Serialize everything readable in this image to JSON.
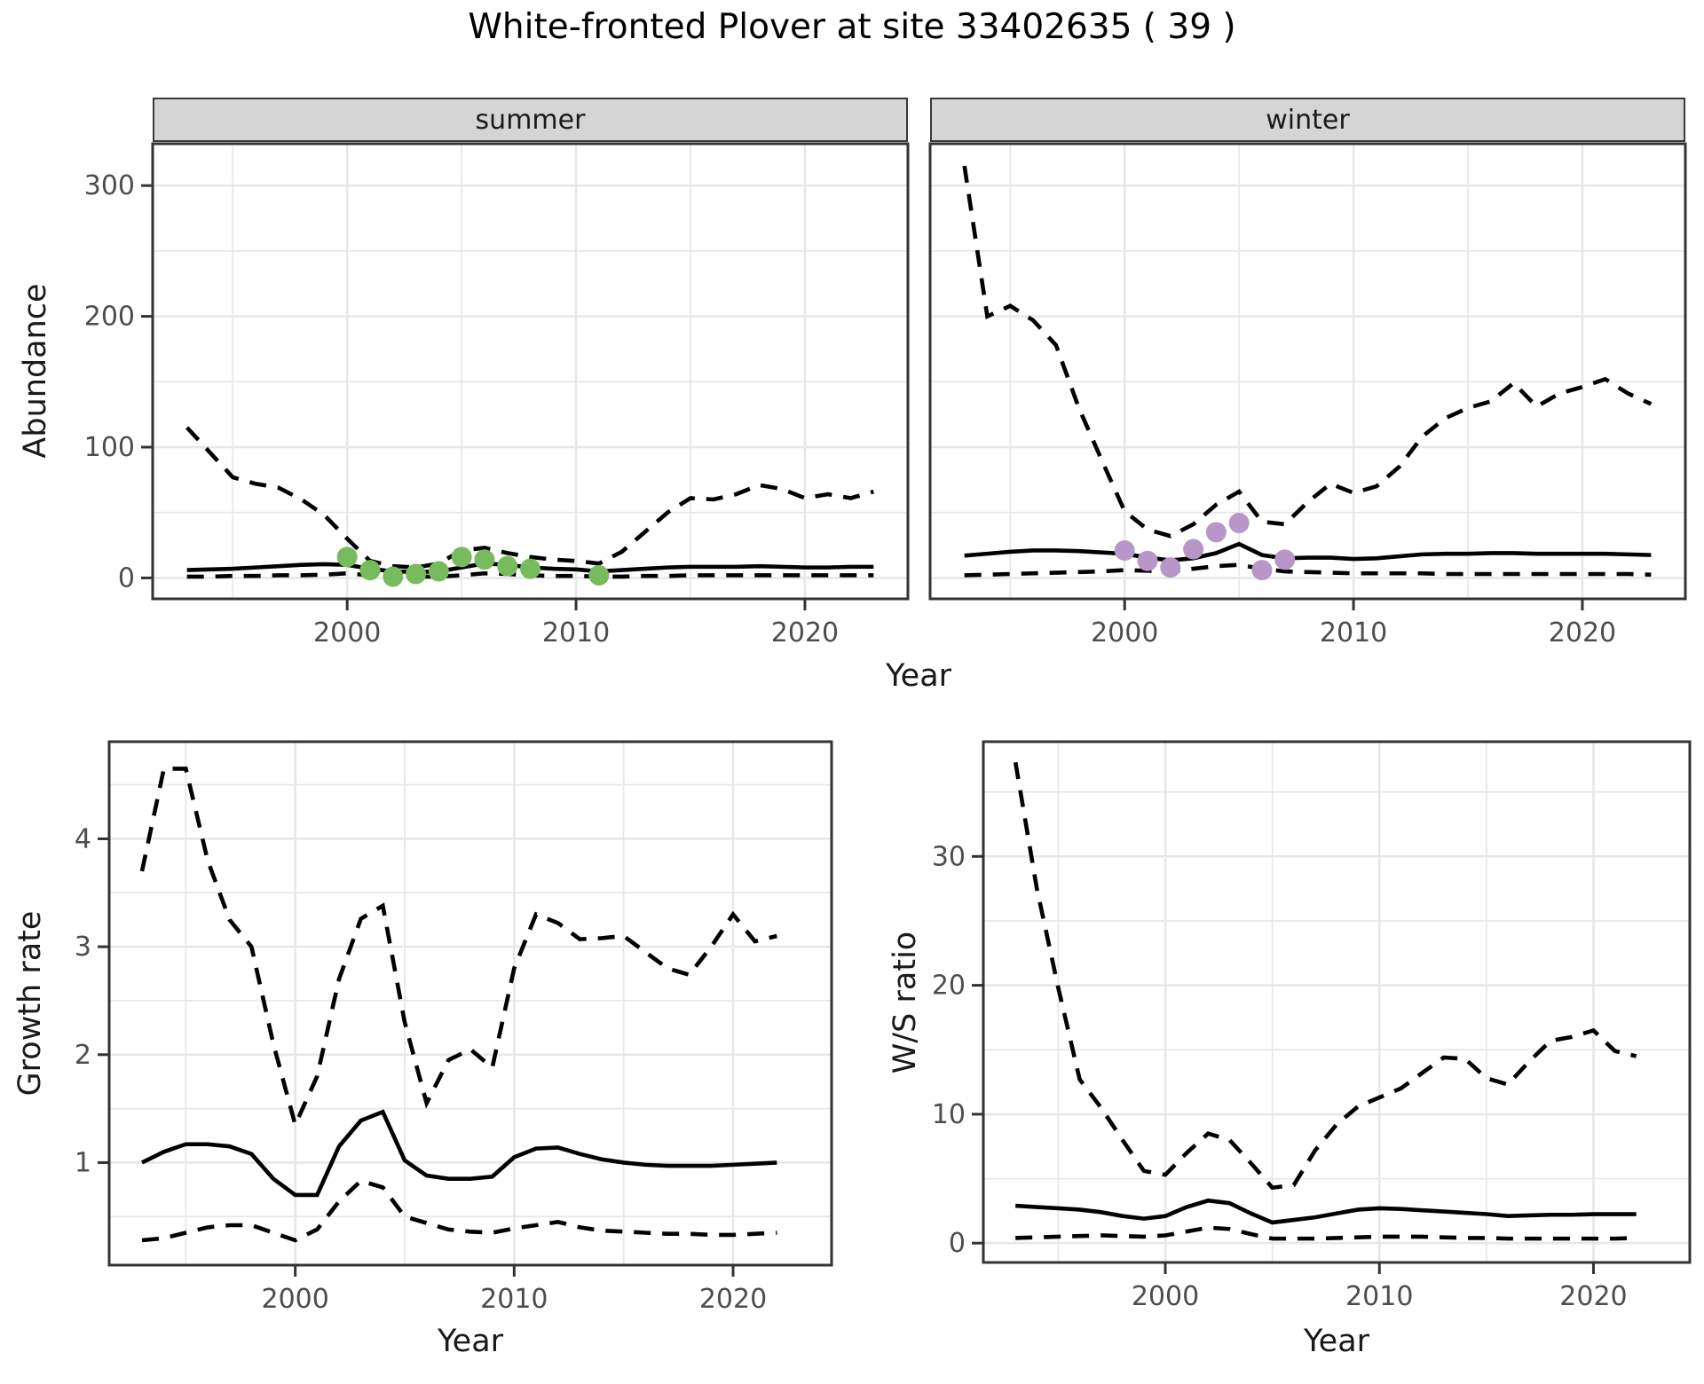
{
  "title": "White-fronted Plover at site 33402635 ( 39 )",
  "facets": {
    "summer": "summer",
    "winter": "winter"
  },
  "axis_titles": {
    "x": "Year",
    "y_abundance": "Abundance",
    "y_growth": "Growth rate",
    "y_ratio": "W/S ratio"
  },
  "colors": {
    "summer_dot": "#76bc5c",
    "winter_dot": "#b996c8",
    "line": "#000000",
    "strip_bg": "#d5d5d5",
    "panel_border": "#333333",
    "grid": "#e7e7e7",
    "tick_text": "#4d4d4d"
  },
  "chart_data": [
    {
      "id": "abundance-summer",
      "type": "line",
      "facet": "summer",
      "xlabel": "Year",
      "ylabel": "Abundance",
      "x_domain": [
        1991.5,
        2024.5
      ],
      "y_domain": [
        -16,
        332
      ],
      "x_ticks": {
        "major": [
          2000,
          2010,
          2020
        ],
        "minor": [
          1995,
          2005,
          2015
        ],
        "labels": [
          "2000",
          "2010",
          "2020"
        ]
      },
      "y_ticks": {
        "major": [
          0,
          100,
          200,
          300
        ],
        "minor": [
          50,
          150,
          250
        ],
        "labels": [
          "0",
          "100",
          "200",
          "300"
        ]
      },
      "x": [
        1993,
        1994,
        1995,
        1996,
        1997,
        1998,
        1999,
        2000,
        2001,
        2002,
        2003,
        2004,
        2005,
        2006,
        2007,
        2008,
        2009,
        2010,
        2011,
        2012,
        2013,
        2014,
        2015,
        2016,
        2017,
        2018,
        2019,
        2020,
        2021,
        2022,
        2023
      ],
      "series": [
        {
          "name": "upper-95ci",
          "style": "dashed",
          "values": [
            115,
            96,
            77,
            72,
            69,
            60,
            48,
            30,
            13,
            9,
            8,
            11,
            21,
            23,
            19,
            16,
            14,
            13,
            11,
            20,
            35,
            50,
            61,
            60,
            64,
            71,
            68,
            61,
            64,
            61,
            66
          ]
        },
        {
          "name": "median",
          "style": "solid",
          "values": [
            6,
            6.5,
            7,
            8,
            9,
            10,
            10.5,
            10,
            7,
            5,
            4.5,
            5,
            8,
            11,
            10,
            8,
            7,
            6.5,
            5,
            6,
            7,
            8,
            8.5,
            8.5,
            8.5,
            9,
            8.5,
            8,
            8,
            8.5,
            8.5
          ]
        },
        {
          "name": "lower-95ci",
          "style": "dashed",
          "values": [
            1,
            1,
            1.5,
            1.5,
            2,
            2,
            2.5,
            3.5,
            2,
            1,
            1,
            1,
            2,
            3.5,
            3,
            2,
            1.5,
            1.5,
            1,
            1,
            1.5,
            1.5,
            2,
            2,
            2,
            2,
            2,
            2,
            2,
            2,
            2
          ]
        }
      ],
      "observations": {
        "name": "observed-count-summer",
        "color_key": "summer_dot",
        "x": [
          2000,
          2001,
          2002,
          2003,
          2004,
          2005,
          2006,
          2007,
          2008,
          2011
        ],
        "values": [
          16,
          6,
          1,
          3,
          5,
          16,
          14,
          9,
          7,
          2
        ]
      }
    },
    {
      "id": "abundance-winter",
      "type": "line",
      "facet": "winter",
      "xlabel": "Year",
      "ylabel": "Abundance",
      "x_domain": [
        1991.5,
        2024.5
      ],
      "y_domain": [
        -16,
        332
      ],
      "x_ticks": {
        "major": [
          2000,
          2010,
          2020
        ],
        "minor": [
          1995,
          2005,
          2015
        ],
        "labels": [
          "2000",
          "2010",
          "2020"
        ]
      },
      "y_ticks": {
        "major": [
          0,
          100,
          200,
          300
        ],
        "minor": [
          50,
          150,
          250
        ],
        "labels": [
          "0",
          "100",
          "200",
          "300"
        ]
      },
      "x": [
        1993,
        1994,
        1995,
        1996,
        1997,
        1998,
        1999,
        2000,
        2001,
        2002,
        2003,
        2004,
        2005,
        2006,
        2007,
        2008,
        2009,
        2010,
        2011,
        2012,
        2013,
        2014,
        2015,
        2016,
        2017,
        2018,
        2019,
        2020,
        2021,
        2022,
        2023
      ],
      "series": [
        {
          "name": "upper-95ci",
          "style": "dashed",
          "values": [
            315,
            200,
            208,
            197,
            178,
            130,
            90,
            51,
            37,
            32,
            41,
            56,
            66,
            43,
            41,
            58,
            72,
            65,
            70,
            85,
            108,
            122,
            130,
            135,
            149,
            131,
            141,
            146,
            152,
            141,
            133
          ]
        },
        {
          "name": "median",
          "style": "solid",
          "values": [
            17,
            18.5,
            20,
            21,
            21,
            20.5,
            19.5,
            18.5,
            15.5,
            13.5,
            15,
            19,
            26,
            17.5,
            15,
            15.5,
            15.5,
            14.5,
            15,
            16.5,
            18,
            18.5,
            18.5,
            19,
            19,
            18.5,
            18.5,
            18.5,
            18.5,
            18,
            17.5
          ]
        },
        {
          "name": "lower-95ci",
          "style": "dashed",
          "values": [
            2,
            2.5,
            3,
            3.5,
            4,
            4.5,
            5,
            6,
            5.5,
            5,
            7,
            9,
            10,
            7,
            5,
            4.5,
            4,
            3.5,
            3.5,
            3.5,
            3.5,
            3,
            3,
            3,
            3,
            3,
            3,
            3,
            3,
            3,
            2.5
          ]
        }
      ],
      "observations": {
        "name": "observed-count-winter",
        "color_key": "winter_dot",
        "x": [
          2000,
          2001,
          2002,
          2003,
          2004,
          2005,
          2006,
          2007
        ],
        "values": [
          21,
          13,
          8,
          22,
          35,
          42,
          6,
          14
        ]
      }
    },
    {
      "id": "growth-rate",
      "type": "line",
      "facet": null,
      "xlabel": "Year",
      "ylabel": "Growth rate",
      "x_domain": [
        1991.5,
        2024.5
      ],
      "y_domain": [
        0.05,
        4.9
      ],
      "x_ticks": {
        "major": [
          2000,
          2010,
          2020
        ],
        "minor": [
          1995,
          2005,
          2015
        ],
        "labels": [
          "2000",
          "2010",
          "2020"
        ]
      },
      "y_ticks": {
        "major": [
          1,
          2,
          3,
          4
        ],
        "minor": [
          0.5,
          1.5,
          2.5,
          3.5,
          4.5
        ],
        "labels": [
          "1",
          "2",
          "3",
          "4"
        ]
      },
      "x": [
        1993,
        1994,
        1995,
        1996,
        1997,
        1998,
        1999,
        2000,
        2001,
        2002,
        2003,
        2004,
        2005,
        2006,
        2007,
        2008,
        2009,
        2010,
        2011,
        2012,
        2013,
        2014,
        2015,
        2016,
        2017,
        2018,
        2019,
        2020,
        2021,
        2022
      ],
      "series": [
        {
          "name": "upper-95ci",
          "style": "dashed",
          "values": [
            3.7,
            4.65,
            4.65,
            3.8,
            3.25,
            3.0,
            2.1,
            1.35,
            1.8,
            2.7,
            3.26,
            3.38,
            2.3,
            1.55,
            1.95,
            2.05,
            1.88,
            2.8,
            3.3,
            3.22,
            3.07,
            3.08,
            3.1,
            2.95,
            2.8,
            2.74,
            3.0,
            3.3,
            3.05,
            3.1
          ]
        },
        {
          "name": "median",
          "style": "solid",
          "values": [
            1.0,
            1.1,
            1.17,
            1.17,
            1.15,
            1.08,
            0.85,
            0.7,
            0.7,
            1.15,
            1.39,
            1.47,
            1.02,
            0.88,
            0.85,
            0.85,
            0.87,
            1.05,
            1.13,
            1.14,
            1.08,
            1.03,
            1.0,
            0.98,
            0.97,
            0.97,
            0.97,
            0.98,
            0.99,
            1.0
          ]
        },
        {
          "name": "lower-95ci",
          "style": "dashed",
          "values": [
            0.28,
            0.3,
            0.35,
            0.4,
            0.42,
            0.42,
            0.35,
            0.28,
            0.38,
            0.64,
            0.83,
            0.77,
            0.5,
            0.44,
            0.38,
            0.36,
            0.35,
            0.39,
            0.42,
            0.45,
            0.4,
            0.37,
            0.36,
            0.35,
            0.34,
            0.34,
            0.33,
            0.33,
            0.34,
            0.35
          ]
        }
      ],
      "observations": null
    },
    {
      "id": "ws-ratio",
      "type": "line",
      "facet": null,
      "xlabel": "Year",
      "ylabel": "W/S ratio",
      "x_domain": [
        1991.5,
        2024.5
      ],
      "y_domain": [
        -1.5,
        38.9
      ],
      "x_ticks": {
        "major": [
          2000,
          2010,
          2020
        ],
        "minor": [
          1995,
          2005,
          2015
        ],
        "labels": [
          "2000",
          "2010",
          "2020"
        ]
      },
      "y_ticks": {
        "major": [
          0,
          10,
          20,
          30
        ],
        "minor": [
          5,
          15,
          25,
          35
        ],
        "labels": [
          "0",
          "10",
          "20",
          "30"
        ]
      },
      "x": [
        1993,
        1994,
        1995,
        1996,
        1997,
        1998,
        1999,
        2000,
        2001,
        2002,
        2003,
        2004,
        2005,
        2006,
        2007,
        2008,
        2009,
        2010,
        2011,
        2012,
        2013,
        2014,
        2015,
        2016,
        2017,
        2018,
        2019,
        2020,
        2021,
        2022
      ],
      "series": [
        {
          "name": "upper-95ci",
          "style": "dashed",
          "values": [
            37.3,
            27.5,
            19.8,
            12.7,
            10.5,
            8.0,
            5.6,
            5.3,
            7.0,
            8.5,
            8.0,
            6.2,
            4.3,
            4.5,
            7.2,
            9.2,
            10.6,
            11.3,
            12.0,
            13.2,
            14.4,
            14.3,
            12.8,
            12.3,
            14.1,
            15.7,
            16.0,
            16.5,
            14.9,
            14.5
          ]
        },
        {
          "name": "median",
          "style": "solid",
          "values": [
            2.9,
            2.8,
            2.7,
            2.6,
            2.4,
            2.1,
            1.9,
            2.1,
            2.8,
            3.3,
            3.1,
            2.3,
            1.6,
            1.8,
            2.0,
            2.3,
            2.6,
            2.7,
            2.65,
            2.55,
            2.45,
            2.35,
            2.25,
            2.1,
            2.15,
            2.2,
            2.2,
            2.25,
            2.25,
            2.25
          ]
        },
        {
          "name": "lower-95ci",
          "style": "dashed",
          "values": [
            0.4,
            0.45,
            0.5,
            0.55,
            0.6,
            0.55,
            0.5,
            0.6,
            0.9,
            1.2,
            1.1,
            0.7,
            0.35,
            0.35,
            0.35,
            0.4,
            0.45,
            0.5,
            0.5,
            0.5,
            0.45,
            0.4,
            0.4,
            0.35,
            0.35,
            0.35,
            0.35,
            0.35,
            0.35,
            0.4
          ]
        }
      ],
      "observations": null
    }
  ]
}
